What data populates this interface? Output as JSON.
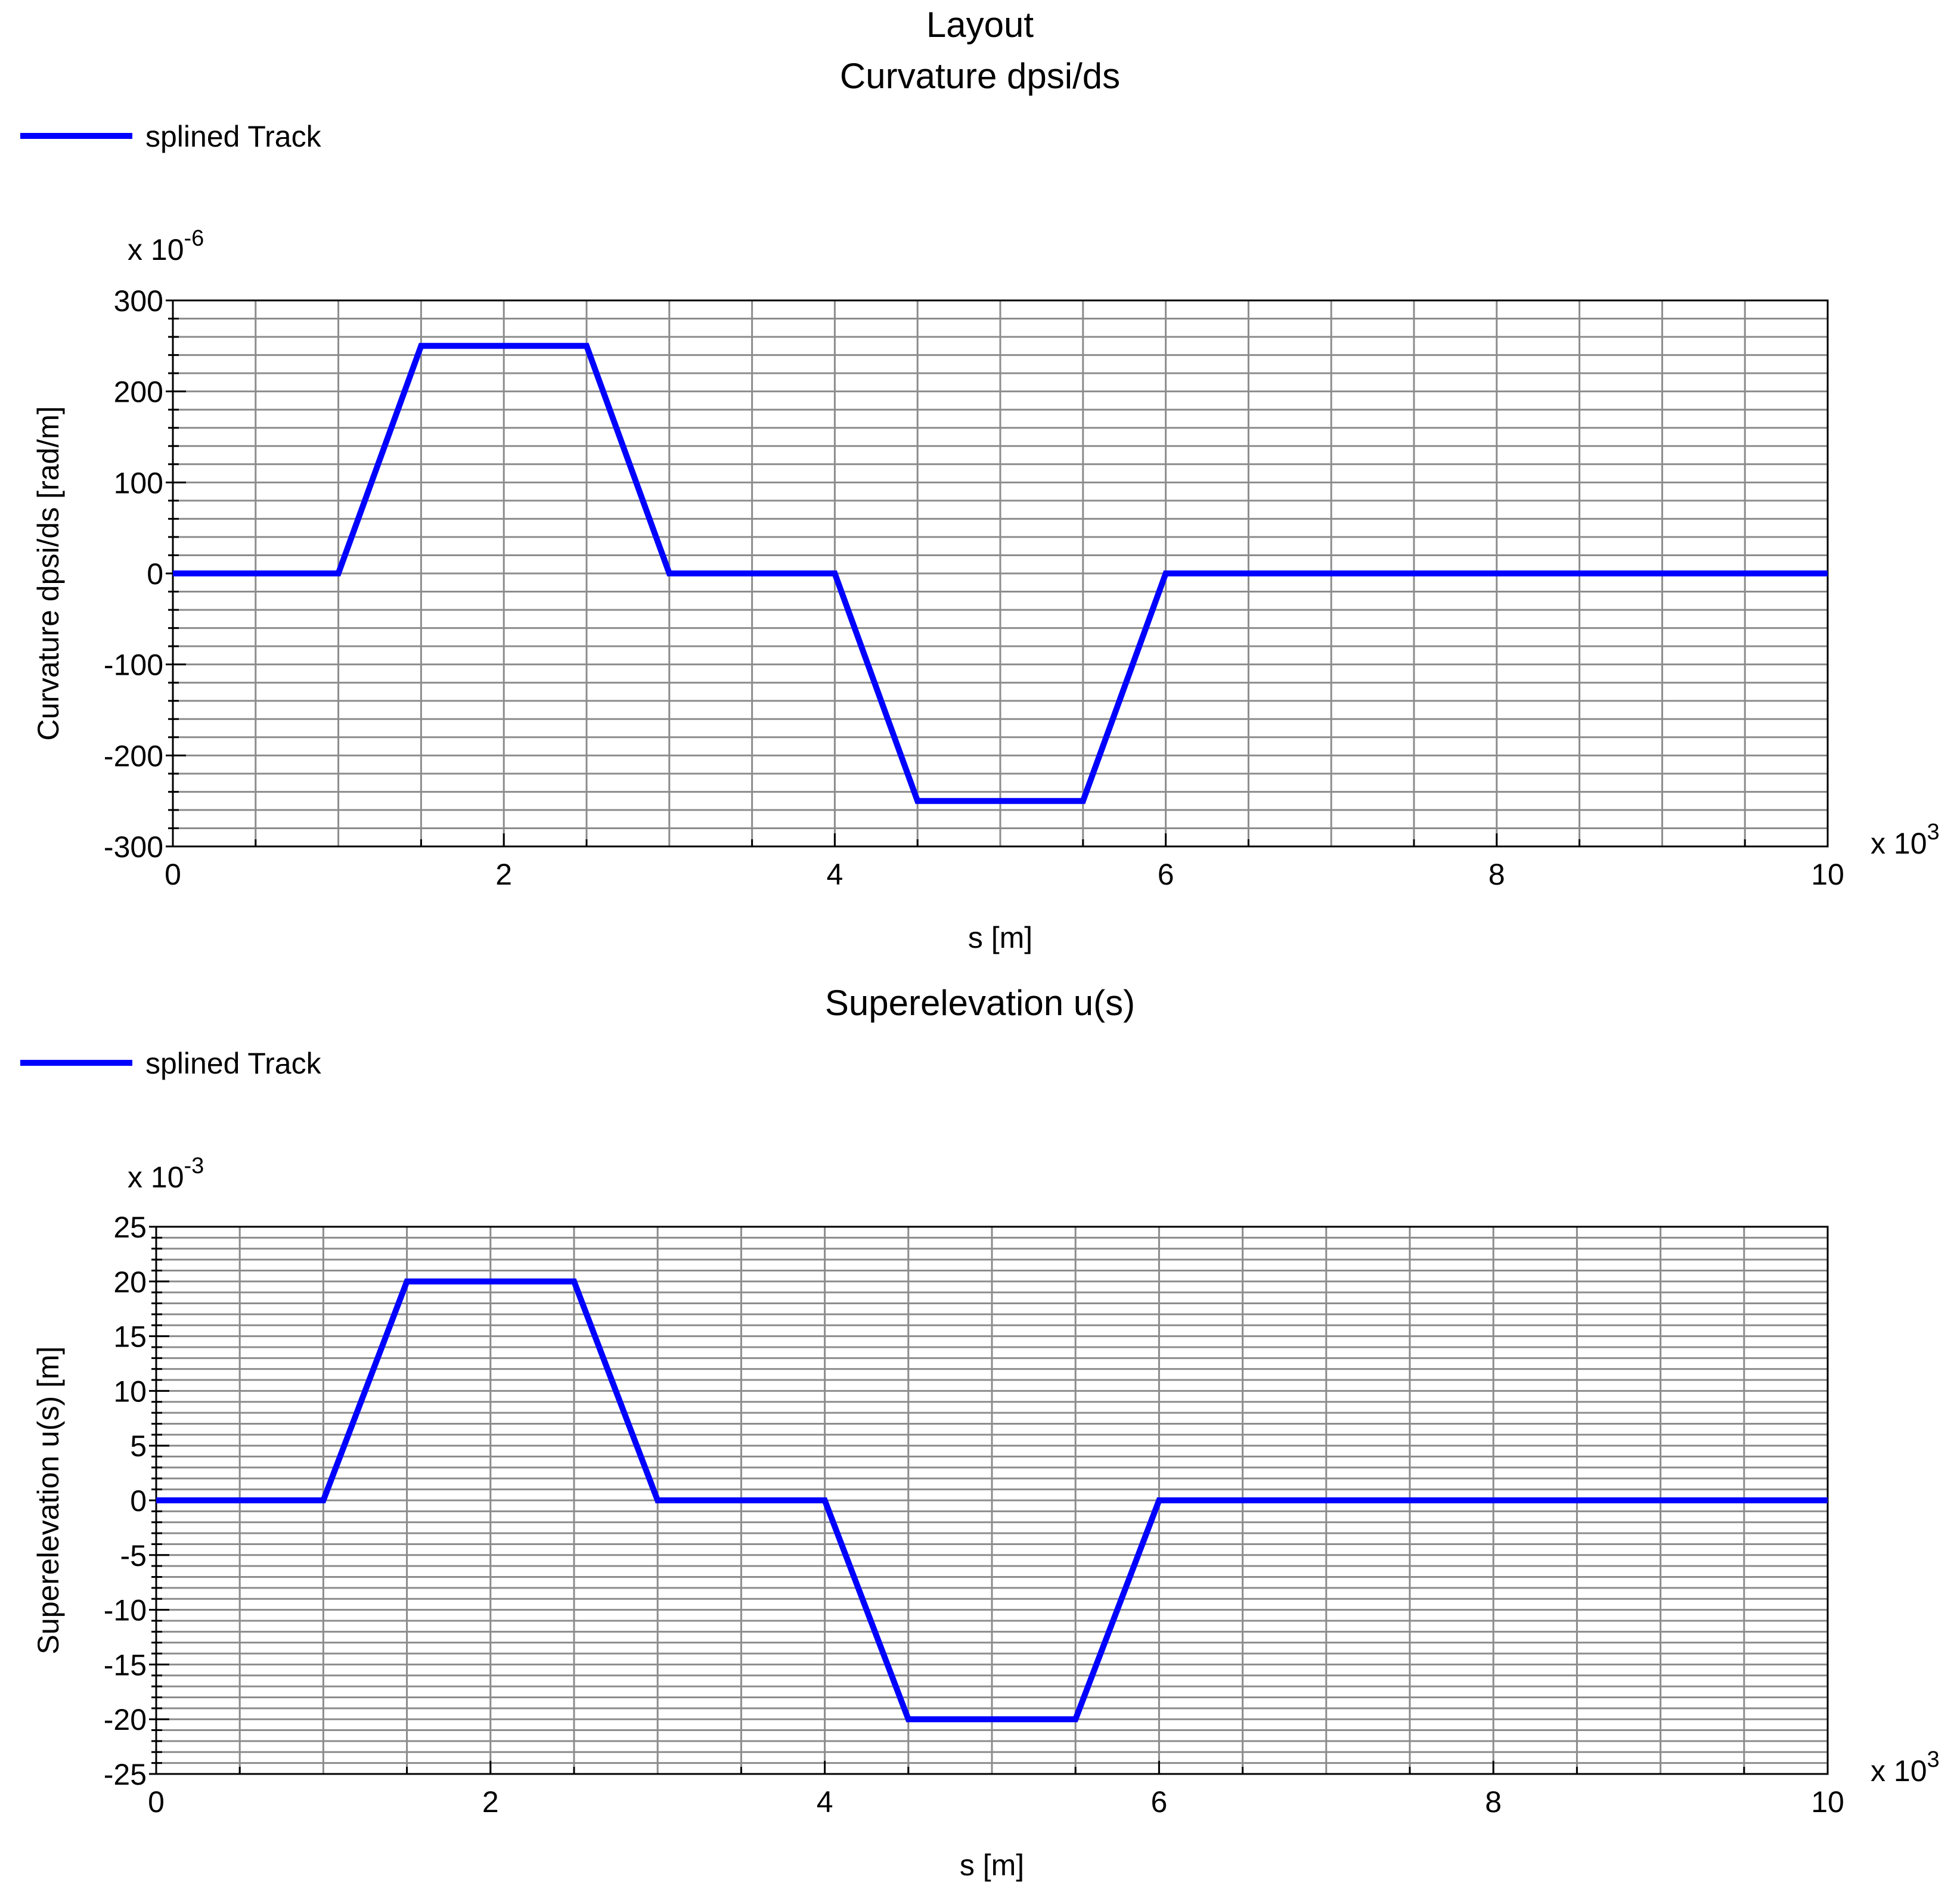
{
  "page": {
    "title": "Layout"
  },
  "colors": {
    "series": "#0000ff",
    "grid": "#8c8c8c",
    "axis": "#000000",
    "background": "#ffffff"
  },
  "chart_data": [
    {
      "type": "line",
      "title": "Curvature dpsi/ds",
      "xlabel": "s [m]",
      "ylabel": "Curvature dpsi/ds [rad/m]",
      "x_multiplier": "x 10",
      "x_exponent": "3",
      "y_multiplier": "x 10",
      "y_exponent": "-6",
      "xlim": [
        0,
        10
      ],
      "ylim": [
        -300,
        300
      ],
      "x_ticks": [
        0,
        2,
        4,
        6,
        8,
        10
      ],
      "y_ticks": [
        300,
        200,
        100,
        0,
        -100,
        -200,
        -300
      ],
      "grid": true,
      "legend": "top-left",
      "series": [
        {
          "name": "splined Track",
          "x": [
            0,
            1,
            1.5,
            2.5,
            3,
            4,
            4.5,
            5.5,
            6,
            10
          ],
          "y": [
            0,
            0,
            250,
            250,
            0,
            0,
            -250,
            -250,
            0,
            0
          ]
        }
      ]
    },
    {
      "type": "line",
      "title": "Superelevation u(s)",
      "xlabel": "s [m]",
      "ylabel": "Superelevation u(s) [m]",
      "x_multiplier": "x 10",
      "x_exponent": "3",
      "y_multiplier": "x 10",
      "y_exponent": "-3",
      "xlim": [
        0,
        10
      ],
      "ylim": [
        -25,
        25
      ],
      "x_ticks": [
        0,
        2,
        4,
        6,
        8,
        10
      ],
      "y_ticks": [
        25,
        20,
        15,
        10,
        5,
        0,
        -5,
        -10,
        -15,
        -20,
        -25
      ],
      "grid": true,
      "legend": "top-left",
      "series": [
        {
          "name": "splined Track",
          "x": [
            0,
            1,
            1.5,
            2.5,
            3,
            4,
            4.5,
            5.5,
            6,
            10
          ],
          "y": [
            0,
            0,
            20,
            20,
            0,
            0,
            -20,
            -20,
            0,
            0
          ]
        }
      ]
    }
  ]
}
